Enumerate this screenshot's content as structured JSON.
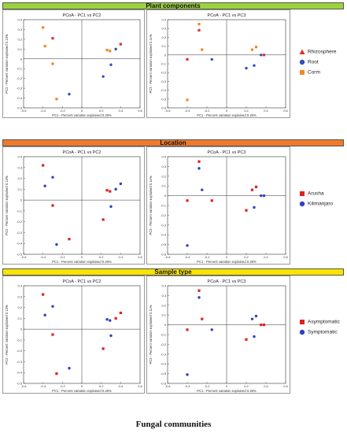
{
  "caption": "Fungal communities",
  "sections": [
    {
      "title": "Plant components",
      "band_color": "#9bd43a",
      "legend": [
        {
          "label": "Rhizosphere",
          "color": "#e03030",
          "shape": "triangle"
        },
        {
          "label": "Root",
          "color": "#3050c0",
          "shape": "circle"
        },
        {
          "label": "Corm",
          "color": "#f08a20",
          "shape": "square"
        }
      ]
    },
    {
      "title": "Location",
      "band_color": "#f07a2a",
      "legend": [
        {
          "label": "Arusha",
          "color": "#e02020",
          "shape": "square"
        },
        {
          "label": "Kilimanjaro",
          "color": "#3040c0",
          "shape": "circle"
        }
      ]
    },
    {
      "title": "Sample type",
      "band_color": "#f7e400",
      "legend": [
        {
          "label": "Asymptomatic",
          "color": "#e02020",
          "shape": "square"
        },
        {
          "label": "Symptomatic",
          "color": "#3040c0",
          "shape": "circle"
        }
      ]
    }
  ],
  "chart_data": [
    {
      "type": "scatter",
      "title": "PCoA - PC1 vs PC2",
      "xlabel": "PC1 - Percent variation explained 0.26%",
      "ylabel": "PC2 - Percent variation explained 0.13%",
      "xlim": [
        -0.6,
        0.6
      ],
      "ylim": [
        -0.5,
        0.4
      ],
      "xticks": [
        -0.6,
        -0.4,
        -0.2,
        0,
        0.2,
        0.4,
        0.6
      ],
      "yticks": [
        -0.5,
        -0.4,
        -0.3,
        -0.2,
        -0.1,
        0,
        0.1,
        0.2,
        0.3,
        0.4
      ],
      "series": [
        {
          "name": "Corm",
          "color": "#f08a20",
          "points": [
            [
              -0.4,
              0.32
            ],
            [
              -0.38,
              0.13
            ],
            [
              -0.3,
              -0.05
            ],
            [
              -0.26,
              -0.41
            ],
            [
              0.26,
              0.09
            ],
            [
              0.29,
              0.08
            ]
          ]
        },
        {
          "name": "Root",
          "color": "#3050c0",
          "points": [
            [
              -0.13,
              -0.36
            ],
            [
              0.22,
              -0.18
            ],
            [
              0.3,
              -0.06
            ],
            [
              0.35,
              0.1
            ]
          ]
        },
        {
          "name": "Rhizosphere",
          "color": "#e03030",
          "points": [
            [
              -0.3,
              0.21
            ],
            [
              0.4,
              0.15
            ]
          ]
        }
      ]
    },
    {
      "type": "scatter",
      "title": "PCoA - PC1 vs PC3",
      "xlabel": "PC1 - Percent variation explained 0.26%",
      "ylabel": "PC3 - Percent variation explained 0.11%",
      "xlim": [
        -0.6,
        0.6
      ],
      "ylim": [
        -0.6,
        0.4
      ],
      "xticks": [
        -0.6,
        -0.4,
        -0.2,
        0,
        0.2,
        0.4,
        0.6
      ],
      "yticks": [
        -0.6,
        -0.5,
        -0.4,
        -0.3,
        -0.2,
        -0.1,
        0,
        0.1,
        0.2,
        0.3,
        0.4
      ],
      "series": [
        {
          "name": "Corm",
          "color": "#f08a20",
          "points": [
            [
              -0.28,
              0.35
            ],
            [
              -0.25,
              0.06
            ],
            [
              -0.4,
              -0.51
            ],
            [
              0.26,
              0.06
            ],
            [
              0.3,
              0.09
            ]
          ]
        },
        {
          "name": "Root",
          "color": "#3050c0",
          "points": [
            [
              -0.15,
              -0.05
            ],
            [
              0.2,
              -0.15
            ],
            [
              0.28,
              -0.12
            ],
            [
              0.35,
              0.0
            ]
          ]
        },
        {
          "name": "Rhizosphere",
          "color": "#e03030",
          "points": [
            [
              -0.28,
              0.28
            ],
            [
              -0.4,
              -0.05
            ],
            [
              0.38,
              0.0
            ]
          ]
        }
      ]
    },
    {
      "type": "scatter",
      "title": "PCoA - PC1 vs PC2",
      "xlabel": "PC1 - Percent variation explained 0.26%",
      "ylabel": "PC2 - Percent variation explained 0.13%",
      "xlim": [
        -0.6,
        0.6
      ],
      "ylim": [
        -0.5,
        0.4
      ],
      "xticks": [
        -0.6,
        -0.4,
        -0.2,
        0,
        0.2,
        0.4,
        0.6
      ],
      "yticks": [
        -0.5,
        -0.4,
        -0.3,
        -0.2,
        -0.1,
        0,
        0.1,
        0.2,
        0.3,
        0.4
      ],
      "series": [
        {
          "name": "Arusha",
          "color": "#e02020",
          "points": [
            [
              -0.4,
              0.32
            ],
            [
              -0.3,
              -0.05
            ],
            [
              -0.13,
              -0.36
            ],
            [
              0.22,
              -0.18
            ],
            [
              0.26,
              0.09
            ],
            [
              0.29,
              0.08
            ]
          ]
        },
        {
          "name": "Kilimanjaro",
          "color": "#3040c0",
          "points": [
            [
              -0.38,
              0.13
            ],
            [
              -0.3,
              0.21
            ],
            [
              -0.26,
              -0.41
            ],
            [
              0.3,
              -0.06
            ],
            [
              0.35,
              0.1
            ],
            [
              0.4,
              0.15
            ]
          ]
        }
      ]
    },
    {
      "type": "scatter",
      "title": "PCoA - PC1 vs PC3",
      "xlabel": "PC1 - Percent variation explained 0.26%",
      "ylabel": "PC3 - Percent variation explained 0.11%",
      "xlim": [
        -0.6,
        0.6
      ],
      "ylim": [
        -0.6,
        0.4
      ],
      "xticks": [
        -0.6,
        -0.4,
        -0.2,
        0,
        0.2,
        0.4,
        0.6
      ],
      "yticks": [
        -0.6,
        -0.5,
        -0.4,
        -0.3,
        -0.2,
        -0.1,
        0,
        0.1,
        0.2,
        0.3,
        0.4
      ],
      "series": [
        {
          "name": "Arusha",
          "color": "#e02020",
          "points": [
            [
              -0.28,
              0.35
            ],
            [
              -0.4,
              -0.05
            ],
            [
              -0.15,
              -0.05
            ],
            [
              0.2,
              -0.15
            ],
            [
              0.26,
              0.06
            ],
            [
              0.3,
              0.09
            ]
          ]
        },
        {
          "name": "Kilimanjaro",
          "color": "#3040c0",
          "points": [
            [
              -0.28,
              0.28
            ],
            [
              -0.25,
              0.06
            ],
            [
              -0.4,
              -0.51
            ],
            [
              0.28,
              -0.12
            ],
            [
              0.35,
              0.0
            ],
            [
              0.38,
              0.0
            ]
          ]
        }
      ]
    },
    {
      "type": "scatter",
      "title": "PCoA - PC1 vs PC2",
      "xlabel": "PC1 - Percent variation explained 0.26%",
      "ylabel": "PC2 - Percent variation explained 0.13%",
      "xlim": [
        -0.6,
        0.6
      ],
      "ylim": [
        -0.5,
        0.4
      ],
      "xticks": [
        -0.6,
        -0.4,
        -0.2,
        0,
        0.2,
        0.4,
        0.6
      ],
      "yticks": [
        -0.5,
        -0.4,
        -0.3,
        -0.2,
        -0.1,
        0,
        0.1,
        0.2,
        0.3,
        0.4
      ],
      "series": [
        {
          "name": "Asymptomatic",
          "color": "#e02020",
          "points": [
            [
              -0.4,
              0.32
            ],
            [
              -0.3,
              -0.05
            ],
            [
              -0.26,
              -0.41
            ],
            [
              0.22,
              -0.18
            ],
            [
              0.35,
              0.1
            ],
            [
              0.4,
              0.15
            ]
          ]
        },
        {
          "name": "Symptomatic",
          "color": "#3040c0",
          "points": [
            [
              -0.38,
              0.13
            ],
            [
              -0.3,
              0.21
            ],
            [
              -0.13,
              -0.36
            ],
            [
              0.26,
              0.09
            ],
            [
              0.29,
              0.08
            ],
            [
              0.3,
              -0.06
            ]
          ]
        }
      ]
    },
    {
      "type": "scatter",
      "title": "PCoA - PC1 vs PC3",
      "xlabel": "PC1 - Percent variation explained 0.26%",
      "ylabel": "PC3 - Percent variation explained 0.11%",
      "xlim": [
        -0.6,
        0.6
      ],
      "ylim": [
        -0.6,
        0.4
      ],
      "xticks": [
        -0.6,
        -0.4,
        -0.2,
        0,
        0.2,
        0.4,
        0.6
      ],
      "yticks": [
        -0.6,
        -0.5,
        -0.4,
        -0.3,
        -0.2,
        -0.1,
        0,
        0.1,
        0.2,
        0.3,
        0.4
      ],
      "series": [
        {
          "name": "Asymptomatic",
          "color": "#e02020",
          "points": [
            [
              -0.28,
              0.35
            ],
            [
              -0.25,
              0.06
            ],
            [
              -0.4,
              -0.05
            ],
            [
              0.2,
              -0.15
            ],
            [
              0.35,
              0.0
            ],
            [
              0.38,
              0.0
            ]
          ]
        },
        {
          "name": "Symptomatic",
          "color": "#3040c0",
          "points": [
            [
              -0.28,
              0.28
            ],
            [
              -0.15,
              -0.05
            ],
            [
              -0.4,
              -0.51
            ],
            [
              0.26,
              0.06
            ],
            [
              0.3,
              0.09
            ],
            [
              0.28,
              -0.12
            ]
          ]
        }
      ]
    }
  ]
}
